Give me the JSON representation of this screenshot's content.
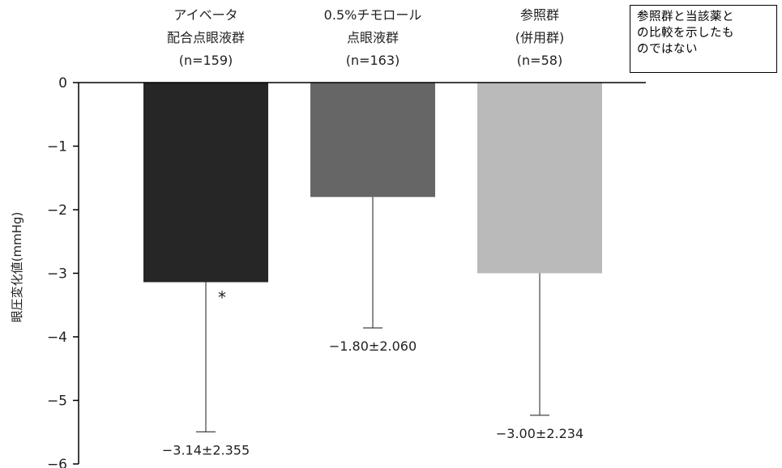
{
  "note": {
    "text": "参照群と当該薬と\nの比較を示したも\nのではない"
  },
  "chart_data": {
    "type": "bar",
    "ylabel": "眼圧変化値(mmHg)",
    "ylim": [
      -6,
      0
    ],
    "yticks": [
      0,
      -1,
      -2,
      -3,
      -4,
      -5,
      -6
    ],
    "ytick_labels": [
      "0",
      "−1",
      "−2",
      "−3",
      "−4",
      "−5",
      "−6"
    ],
    "grid": false,
    "significance_marker": "*",
    "bars": [
      {
        "name_lines": [
          "アイベータ",
          "配合点眼液群",
          "(n=159)"
        ],
        "value": -3.14,
        "sd": 2.355,
        "value_label": "−3.14±2.355",
        "color": "#262626",
        "marker": "*"
      },
      {
        "name_lines": [
          "0.5%チモロール",
          "点眼液群",
          "(n=163)"
        ],
        "value": -1.8,
        "sd": 2.06,
        "value_label": "−1.80±2.060",
        "color": "#666666",
        "marker": ""
      },
      {
        "name_lines": [
          "参照群",
          "(併用群)",
          "(n=58)"
        ],
        "value": -3.0,
        "sd": 2.234,
        "value_label": "−3.00±2.234",
        "color": "#bababa",
        "marker": ""
      }
    ]
  }
}
